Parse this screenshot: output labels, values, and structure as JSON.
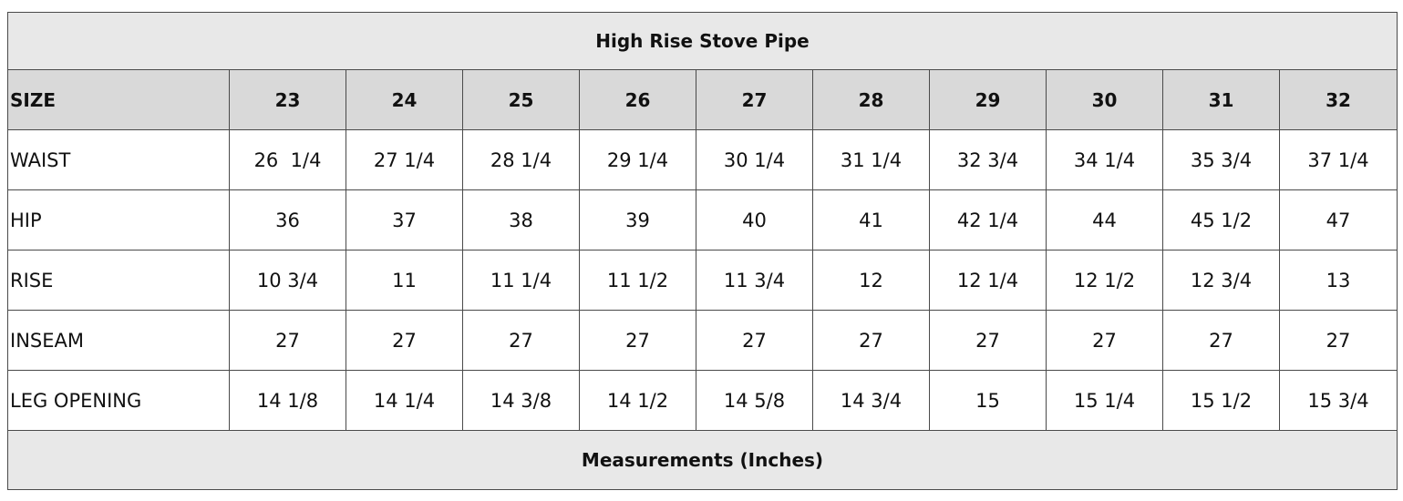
{
  "table": {
    "title": "High Rise Stove Pipe",
    "header_label": "SIZE",
    "sizes": [
      "23",
      "24",
      "25",
      "26",
      "27",
      "28",
      "29",
      "30",
      "31",
      "32"
    ],
    "rows": [
      {
        "label": "WAIST",
        "values": [
          "26  1/4",
          "27 1/4",
          "28 1/4",
          "29 1/4",
          "30 1/4",
          "31 1/4",
          "32 3/4",
          "34 1/4",
          "35 3/4",
          "37 1/4"
        ]
      },
      {
        "label": "HIP",
        "values": [
          "36",
          "37",
          "38",
          "39",
          "40",
          "41",
          "42 1/4",
          "44",
          "45 1/2",
          "47"
        ]
      },
      {
        "label": "RISE",
        "values": [
          "10 3/4",
          "11",
          "11 1/4",
          "11 1/2",
          "11 3/4",
          "12",
          "12 1/4",
          "12 1/2",
          "12 3/4",
          "13"
        ]
      },
      {
        "label": "INSEAM",
        "values": [
          "27",
          "27",
          "27",
          "27",
          "27",
          "27",
          "27",
          "27",
          "27",
          "27"
        ]
      },
      {
        "label": "LEG OPENING",
        "values": [
          "14 1/8",
          "14 1/4",
          "14 3/8",
          "14 1/2",
          "14 5/8",
          "14 3/4",
          "15",
          "15 1/4",
          "15 1/2",
          "15 3/4"
        ]
      }
    ],
    "footer": "Measurements (Inches)"
  },
  "colors": {
    "title_background": "#e8e8e8",
    "header_background": "#d9d9d9",
    "border": "#4a4a4a"
  }
}
